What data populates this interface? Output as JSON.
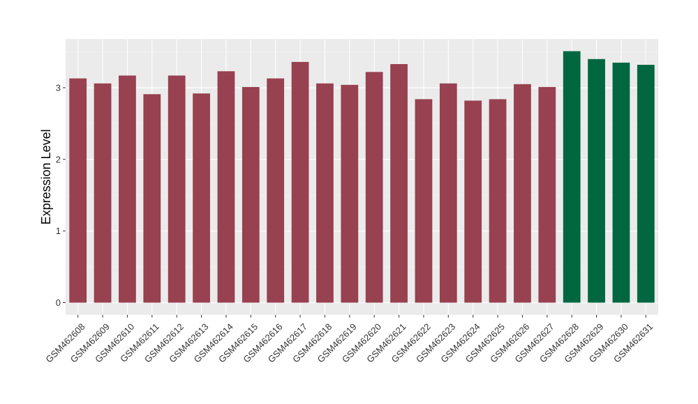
{
  "chart_data": {
    "type": "bar",
    "ylabel": "Expression Level",
    "xlabel": "",
    "ylim": [
      -0.17,
      3.68
    ],
    "yticks": [
      0,
      1,
      2,
      3
    ],
    "ytick_labels": [
      "0",
      "1",
      "2",
      "3"
    ],
    "grid": true,
    "legend": "none",
    "colors": {
      "panel_background": "#EBEBEB",
      "major_grid": "#FFFFFF",
      "minor_grid": "#F5F5F5",
      "series": [
        "#984150",
        "#016741"
      ]
    },
    "categories": [
      "GSM462608",
      "GSM462609",
      "GSM462610",
      "GSM462611",
      "GSM462612",
      "GSM462613",
      "GSM462614",
      "GSM462615",
      "GSM462616",
      "GSM462617",
      "GSM462618",
      "GSM462619",
      "GSM462620",
      "GSM462621",
      "GSM462622",
      "GSM462623",
      "GSM462624",
      "GSM462625",
      "GSM462626",
      "GSM462627",
      "GSM462628",
      "GSM462629",
      "GSM462630",
      "GSM462631"
    ],
    "values": [
      3.13,
      3.06,
      3.17,
      2.91,
      3.17,
      2.92,
      3.23,
      3.01,
      3.13,
      3.36,
      3.06,
      3.04,
      3.22,
      3.33,
      2.84,
      3.06,
      2.82,
      2.84,
      3.05,
      3.01,
      3.51,
      3.4,
      3.35,
      3.32
    ],
    "bar_groups": [
      0,
      0,
      0,
      0,
      0,
      0,
      0,
      0,
      0,
      0,
      0,
      0,
      0,
      0,
      0,
      0,
      0,
      0,
      0,
      0,
      1,
      1,
      1,
      1
    ]
  }
}
